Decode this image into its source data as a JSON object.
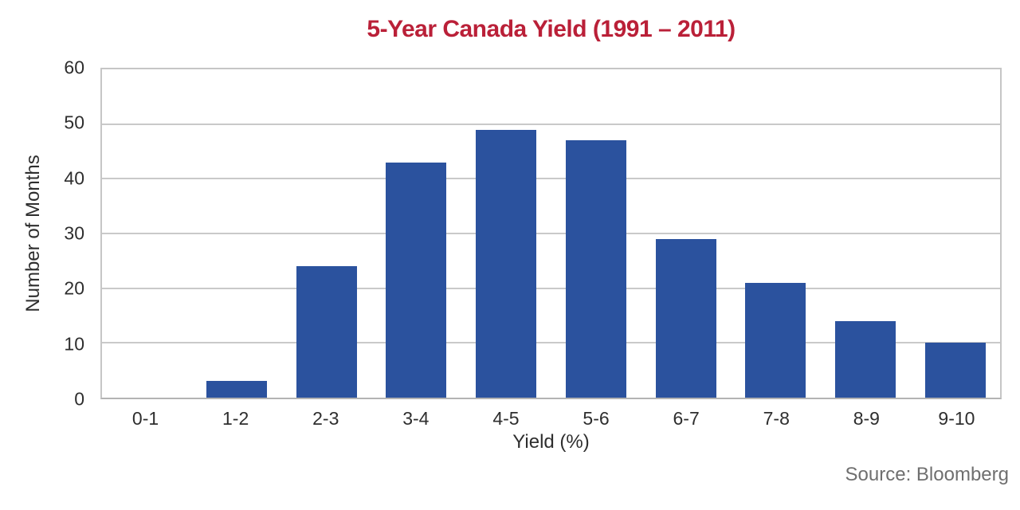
{
  "title": "5-Year Canada Yield (1991 – 2011)",
  "source": "Source: Bloomberg",
  "colors": {
    "title": "#ba2038",
    "bar": "#2b529e",
    "grid": "#c9c9c9",
    "axis_text": "#2e2e2e",
    "source_text": "#6f6f6f"
  },
  "chart_data": {
    "type": "bar",
    "title": "5-Year Canada Yield (1991 – 2011)",
    "categories": [
      "0-1",
      "1-2",
      "2-3",
      "3-4",
      "4-5",
      "5-6",
      "6-7",
      "7-8",
      "8-9",
      "9-10"
    ],
    "values": [
      0,
      3,
      24,
      43,
      49,
      47,
      29,
      21,
      14,
      10
    ],
    "xlabel": "Yield (%)",
    "ylabel": "Number of Months",
    "ylim": [
      0,
      60
    ],
    "yticks": [
      0,
      10,
      20,
      30,
      40,
      50,
      60
    ],
    "grid": "horizontal",
    "legend_position": "none",
    "bar_color": "#2b529e",
    "annotation": "Source: Bloomberg"
  }
}
